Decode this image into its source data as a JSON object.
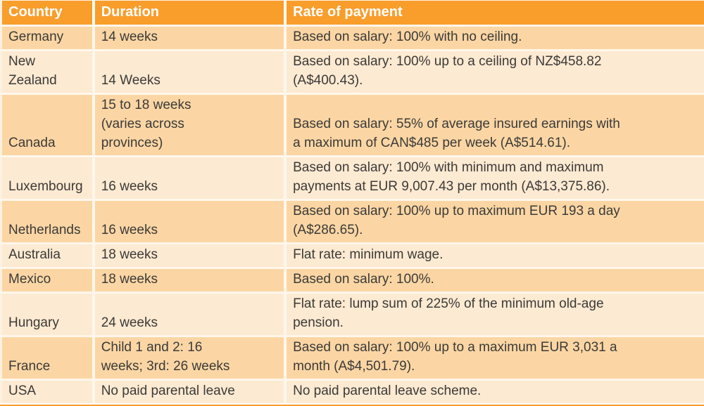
{
  "table": {
    "columns": [
      {
        "label": "Country"
      },
      {
        "label": "Duration"
      },
      {
        "label": "Rate of payment"
      }
    ],
    "rows": [
      {
        "country": "Germany",
        "duration": "14 weeks",
        "rate": "Based on salary: 100% with no ceiling."
      },
      {
        "country": "New\nZealand",
        "duration": "14 Weeks",
        "rate": "Based on salary: 100% up to a ceiling of NZ$458.82\n(A$400.43)."
      },
      {
        "country": "Canada",
        "duration": "15 to 18 weeks\n(varies across\nprovinces)",
        "rate": "Based on salary: 55% of average insured earnings with\na maximum of CAN$485 per week (A$514.61)."
      },
      {
        "country": "Luxembourg",
        "duration": "16 weeks",
        "rate": "Based on salary: 100% with minimum and maximum\npayments at EUR 9,007.43 per month (A$13,375.86)."
      },
      {
        "country": "Netherlands",
        "duration": "16 weeks",
        "rate": "Based on salary: 100% up to maximum EUR 193 a day\n(A$286.65)."
      },
      {
        "country": "Australia",
        "duration": "18 weeks",
        "rate": "Flat rate: minimum wage."
      },
      {
        "country": "Mexico",
        "duration": "18 weeks",
        "rate": "Based on salary: 100%."
      },
      {
        "country": "Hungary",
        "duration": "24 weeks",
        "rate": "Flat rate: lump sum of 225% of the minimum old-age\npension."
      },
      {
        "country": "France",
        "duration": "Child 1 and 2: 16\nweeks; 3rd: 26 weeks",
        "rate": "Based on salary: 100% up to a maximum EUR 3,031 a\nmonth (A$4,501.79)."
      },
      {
        "country": "USA",
        "duration": "No paid parental leave",
        "rate": "No paid parental leave scheme."
      }
    ],
    "colors": {
      "header_bg": "#F99D2B",
      "header_text": "#FFFFFF",
      "header_underline": "#ED8C0F",
      "row_dark": "#FBD6A4",
      "row_light": "#FDEAD2",
      "divider": "#FFF7EC",
      "body_text": "#3B3A38",
      "bottom_strip": "#F99D2B"
    }
  }
}
